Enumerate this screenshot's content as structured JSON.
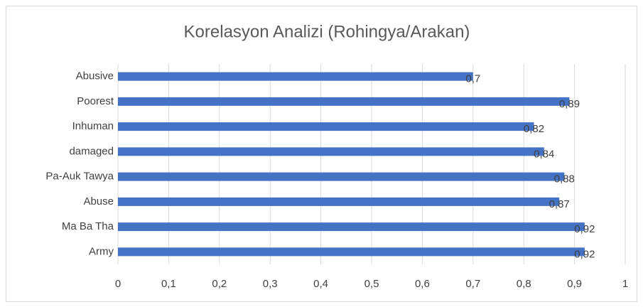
{
  "chart_data": {
    "type": "bar",
    "orientation": "horizontal",
    "title": "Korelasyon Analizi (Rohingya/Arakan)",
    "categories": [
      "Abusive",
      "Poorest",
      "Inhuman",
      "damaged",
      "Pa-Auk Tawya",
      "Abuse",
      "Ma Ba Tha",
      "Army"
    ],
    "values": [
      0.7,
      0.89,
      0.82,
      0.84,
      0.88,
      0.87,
      0.92,
      0.92
    ],
    "value_labels": [
      "0,7",
      "0,89",
      "0,82",
      "0,84",
      "0,88",
      "0,87",
      "0,92",
      "0,92"
    ],
    "color": "#4472c4",
    "xlim": [
      0,
      1
    ],
    "xticks": [
      0,
      {
        "value": 0.1,
        "label": "0,1"
      },
      {
        "value": 0.2,
        "label": "0,2"
      },
      {
        "value": 0.3,
        "label": "0,3"
      },
      {
        "value": 0.4,
        "label": "0,4"
      },
      {
        "value": 0.5,
        "label": "0,5"
      },
      {
        "value": 0.6,
        "label": "0,6"
      },
      {
        "value": 0.7,
        "label": "0,7"
      },
      {
        "value": 0.8,
        "label": "0,8"
      },
      {
        "value": 0.9,
        "label": "0,9"
      },
      1
    ],
    "grid": true
  }
}
